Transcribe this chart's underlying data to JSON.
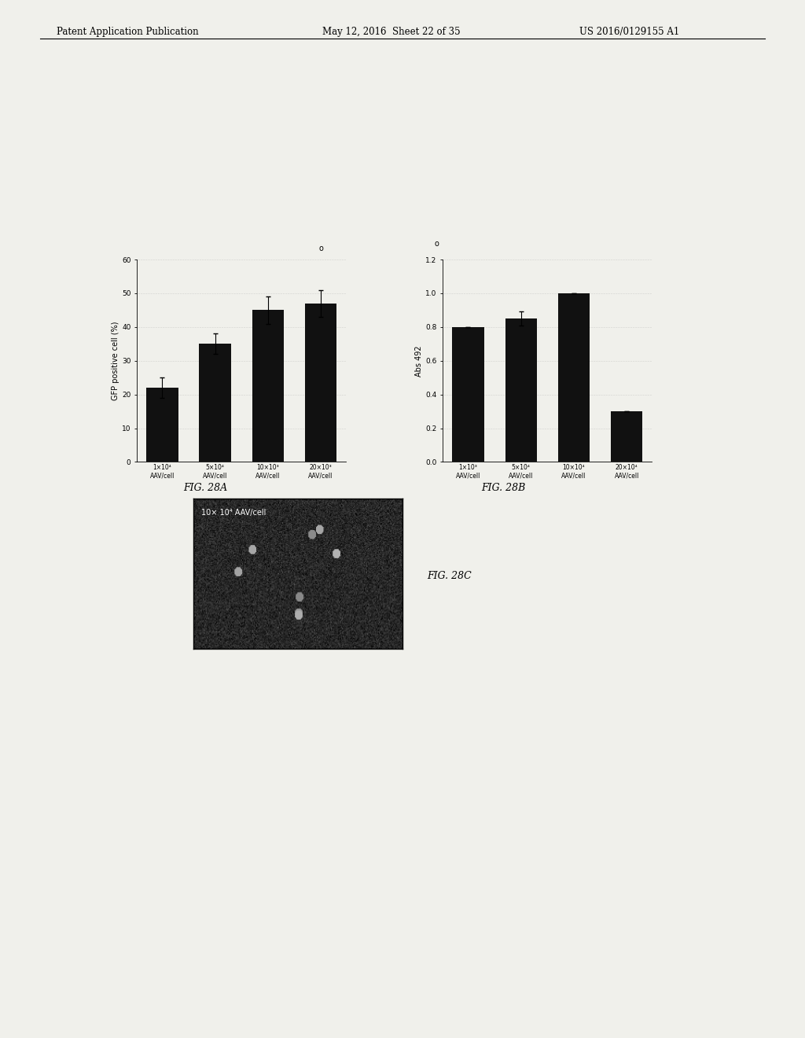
{
  "header_left": "Patent Application Publication",
  "header_mid": "May 12, 2016  Sheet 22 of 35",
  "header_right": "US 2016/0129155 A1",
  "fig28a": {
    "values": [
      22,
      35,
      45,
      47
    ],
    "errors": [
      3,
      3,
      4,
      4
    ],
    "ylabel": "GFP positive cell (%)",
    "ylim": [
      0,
      60
    ],
    "yticks": [
      0,
      10,
      20,
      30,
      40,
      50,
      60
    ],
    "xlabel_lines": [
      [
        "1×10⁴",
        "AAV/cell"
      ],
      [
        "5×10⁴",
        "AAV/cell"
      ],
      [
        "10×10³",
        "AAV/cell"
      ],
      [
        "20×10³",
        "AAV/cell"
      ]
    ],
    "caption": "FIG. 28A",
    "bar_color": "#111111"
  },
  "fig28b": {
    "values": [
      0.8,
      0.85,
      1.0,
      0.3
    ],
    "errors": [
      0.0,
      0.04,
      0.0,
      0.0
    ],
    "ylabel": "Abs 492",
    "ylim": [
      0,
      1.2
    ],
    "yticks": [
      0,
      0.2,
      0.4,
      0.6,
      0.8,
      1.0,
      1.2
    ],
    "xlabel_lines": [
      [
        "1×10³",
        "AAV/cell"
      ],
      [
        "5×10⁴",
        "AAV/cell"
      ],
      [
        "10×10⁴",
        "AAV/cell"
      ],
      [
        "20×10⁴",
        "AAV/cell"
      ]
    ],
    "caption": "FIG. 28B",
    "bar_color": "#111111"
  },
  "fig28c": {
    "caption": "FIG. 28C",
    "label": "10× 10⁴ AAV/cell"
  },
  "background_color": "#f0f0eb",
  "bar_width": 0.6,
  "font_size": 7,
  "caption_font_size": 9
}
